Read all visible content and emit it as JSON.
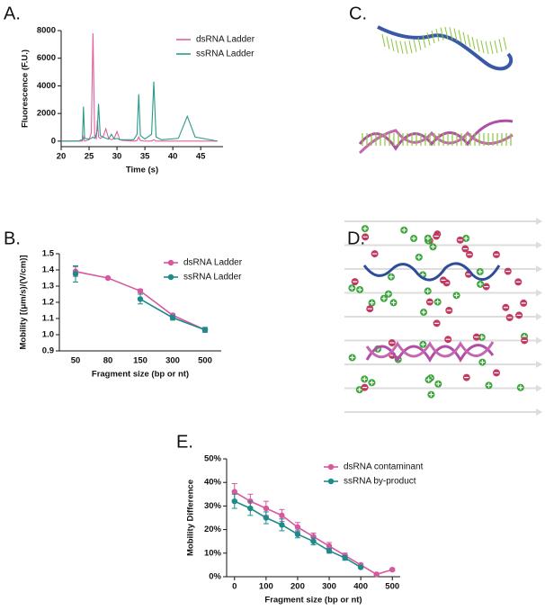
{
  "panel_labels": [
    "A.",
    "B.",
    "C.",
    "D.",
    "E."
  ],
  "chart_data": [
    {
      "type": "line",
      "xlabel": "Time (s)",
      "ylabel": "Fluorescence (F.U.)",
      "x": [
        20,
        23,
        23.8,
        24,
        24.2,
        25,
        25.4,
        25.7,
        26,
        26.3,
        26.5,
        26.7,
        27,
        27.5,
        28,
        28.5,
        29,
        29.5,
        30,
        30.5,
        31,
        33,
        33.6,
        33.9,
        34.2,
        35,
        36.2,
        36.6,
        37,
        38,
        41,
        42.6,
        44,
        48
      ],
      "series": [
        {
          "name": "dsRNA Ladder",
          "color": "#e0609f",
          "values": [
            0,
            0,
            0,
            300,
            0,
            100,
            600,
            7800,
            400,
            200,
            1500,
            300,
            200,
            300,
            900,
            200,
            100,
            200,
            700,
            100,
            50,
            0,
            50,
            300,
            50,
            0,
            0,
            100,
            0,
            0,
            0,
            0,
            0,
            0
          ]
        },
        {
          "name": "ssRNA Ladder",
          "color": "#2a9a8a",
          "values": [
            0,
            0,
            100,
            2500,
            200,
            150,
            200,
            300,
            200,
            500,
            1000,
            2700,
            400,
            300,
            200,
            150,
            500,
            150,
            200,
            100,
            100,
            100,
            500,
            3400,
            400,
            150,
            500,
            4300,
            300,
            100,
            200,
            1800,
            300,
            0
          ]
        }
      ],
      "xlim": [
        20,
        49
      ],
      "xticks": [
        20,
        25,
        30,
        35,
        40,
        45
      ],
      "ylim": [
        -400,
        8000
      ],
      "yticks": [
        0,
        2000,
        4000,
        6000,
        8000
      ],
      "legend": "upper right"
    },
    {
      "type": "line",
      "xlabel": "Fragment size (bp or nt)",
      "ylabel": "Mobility [(μm/s)/(V/cm)]",
      "categories": [
        "50",
        "80",
        "150",
        "300",
        "500"
      ],
      "series": [
        {
          "name": "dsRNA Ladder",
          "color": "#d6589f",
          "values": [
            1.39,
            1.35,
            1.27,
            1.12,
            1.03
          ],
          "errors": [
            0.03,
            0.005,
            0.01,
            0.01,
            0.015
          ]
        },
        {
          "name": "ssRNA Ladder",
          "color": "#1f8a8a",
          "values": [
            1.375,
            null,
            1.22,
            1.105,
            1.03
          ],
          "errors": [
            0.05,
            null,
            0.03,
            0.015,
            0.015
          ]
        }
      ],
      "ylim": [
        0.9,
        1.5
      ],
      "yticks": [
        0.9,
        {
          "value": 1.0,
          "label": "1.0"
        },
        1.1,
        1.2,
        1.3,
        1.4,
        1.5
      ],
      "legend": "upper right"
    },
    {
      "type": "line",
      "xlabel": "Fragment size (bp or nt)",
      "ylabel": "Mobility Difference",
      "x": [
        0,
        50,
        100,
        150,
        200,
        250,
        300,
        350,
        400,
        450,
        500
      ],
      "series": [
        {
          "name": "dsRNA contaminant",
          "color": "#d6589f",
          "values": [
            36,
            32,
            29,
            26,
            21,
            17,
            13,
            9,
            5,
            1,
            3
          ],
          "errors": [
            3.5,
            3,
            3,
            2.5,
            2,
            1.5,
            1.5,
            1,
            0.5,
            0.5,
            0.5
          ]
        },
        {
          "name": "ssRNA by-product",
          "color": "#1f8a8a",
          "values": [
            32,
            29,
            25,
            22,
            18,
            15,
            11,
            8,
            4,
            null,
            null
          ],
          "errors": [
            3,
            3,
            2.5,
            2.5,
            1.5,
            1.5,
            1,
            1,
            0.5,
            null,
            null
          ]
        }
      ],
      "xlim": [
        -25,
        525
      ],
      "xticks": [
        0,
        100,
        200,
        300,
        400,
        500
      ],
      "ylim": [
        0,
        50
      ],
      "yticks": [
        {
          "value": 0,
          "label": "0%"
        },
        {
          "value": 10,
          "label": "10%"
        },
        {
          "value": 20,
          "label": "20%"
        },
        {
          "value": 30,
          "label": "30%"
        },
        {
          "value": 40,
          "label": "40%"
        },
        {
          "value": 50,
          "label": "50%"
        }
      ],
      "legend": "upper right"
    }
  ]
}
